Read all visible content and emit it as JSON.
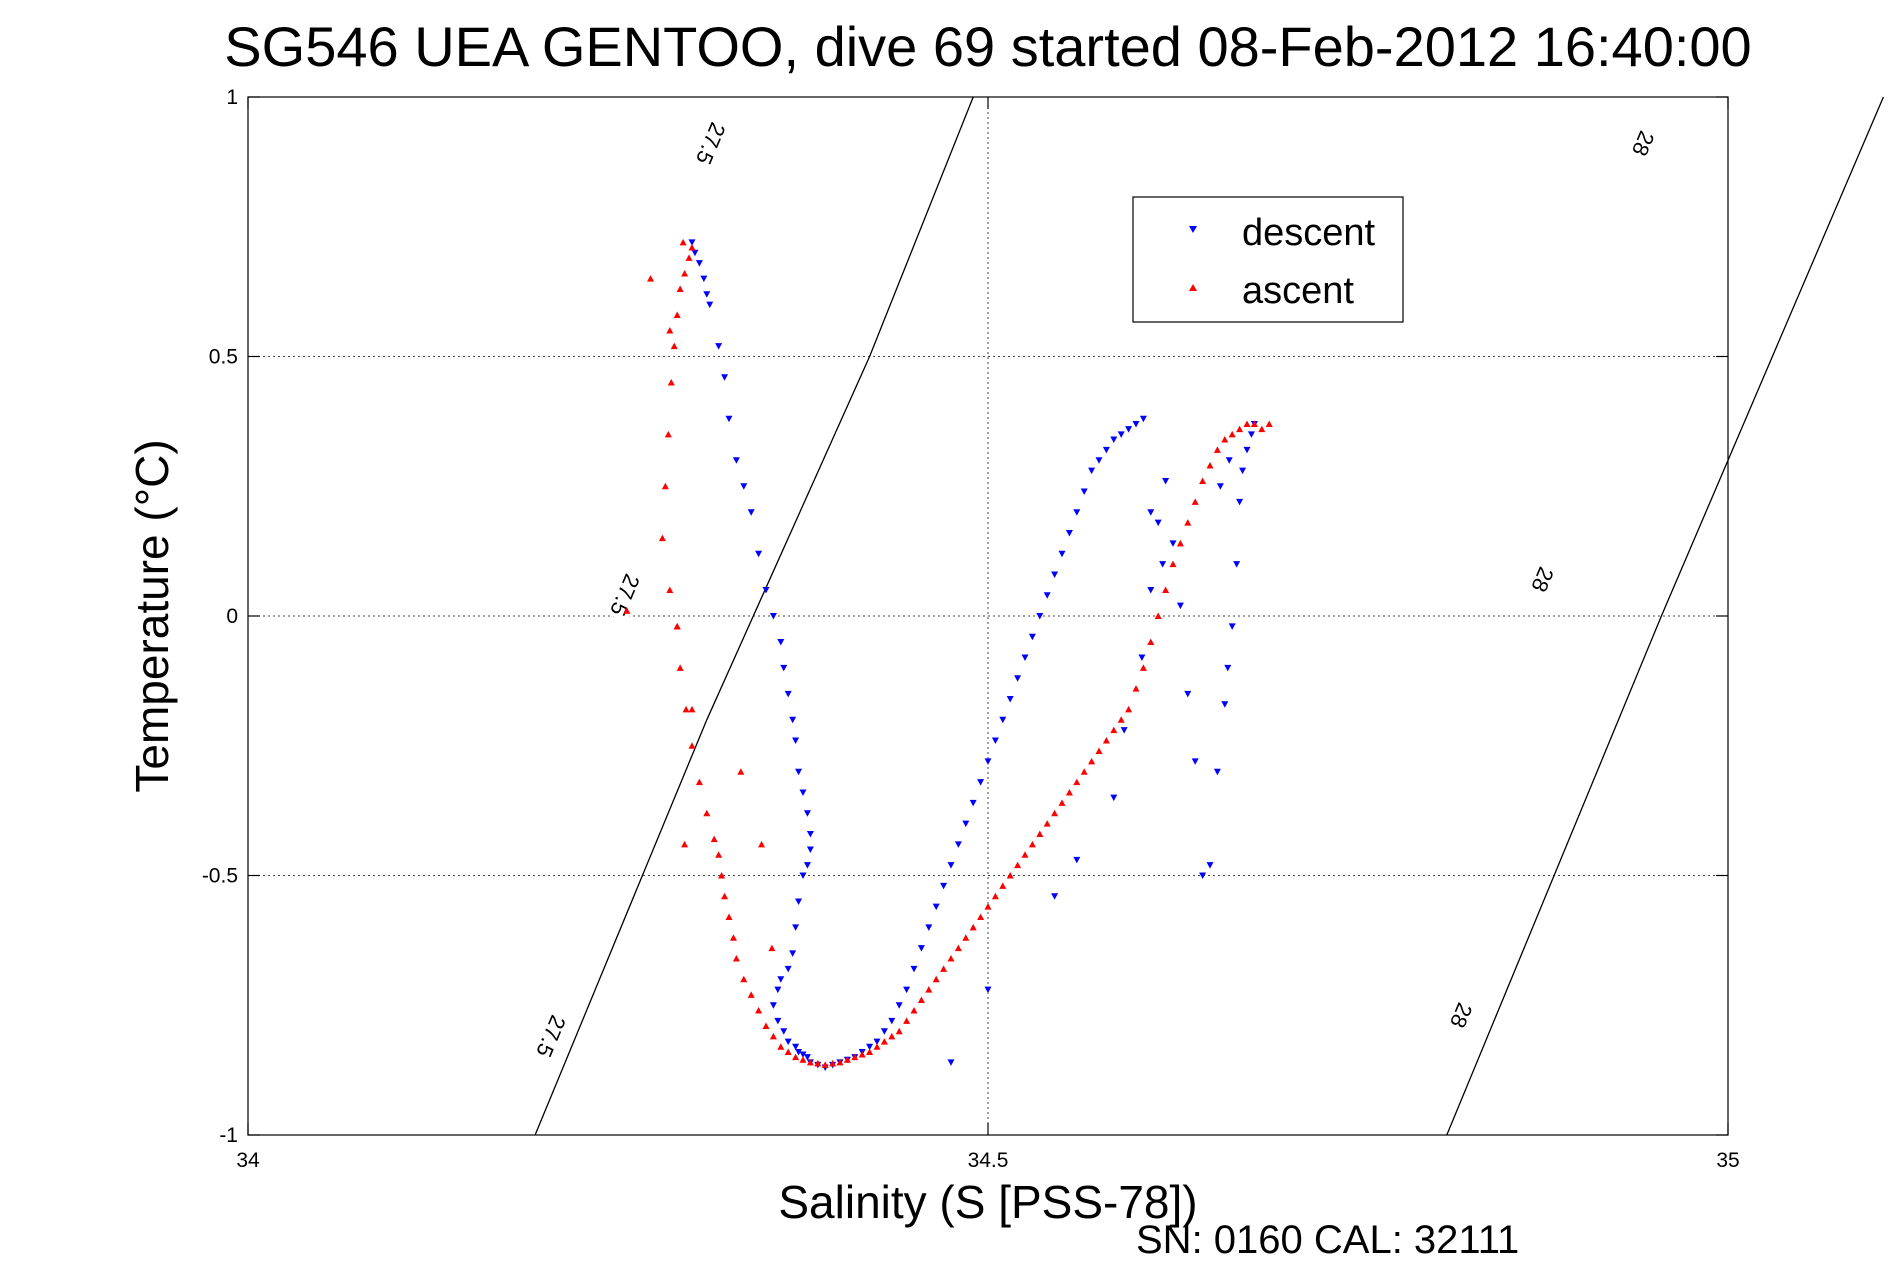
{
  "chart_data": {
    "type": "scatter",
    "title": "SG546 UEA GENTOO, dive 69 started 08-Feb-2012 16:40:00",
    "xlabel": "Salinity (S [PSS-78])",
    "ylabel": "Temperature (°C)",
    "xlim": [
      34,
      35
    ],
    "ylim": [
      -1,
      1
    ],
    "xticks": [
      "34",
      "34.5",
      "35"
    ],
    "yticks": [
      "-1",
      "-0.5",
      "0",
      "0.5",
      "1"
    ],
    "grid": true,
    "legend": "top-right",
    "footnote": "SN: 0160  CAL: 32111",
    "contours": [
      {
        "label": "27.5",
        "points": [
          [
            34.194,
            -1
          ],
          [
            34.31,
            -0.2
          ],
          [
            34.42,
            0.5
          ],
          [
            34.49,
            1
          ]
        ],
        "label_positions": [
          [
            34.205,
            -0.81
          ],
          [
            34.255,
            0.04
          ],
          [
            34.313,
            0.91
          ]
        ]
      },
      {
        "label": "28",
        "points": [
          [
            34.81,
            -1
          ],
          [
            34.955,
            0
          ],
          [
            35.105,
            1
          ]
        ],
        "label_positions": [
          [
            34.82,
            -0.77
          ],
          [
            34.875,
            0.07
          ],
          [
            34.943,
            0.91
          ]
        ]
      }
    ],
    "series": [
      {
        "name": "descent",
        "color": "#0000ff",
        "marker": "triangle-down",
        "x": [
          34.3,
          34.302,
          34.305,
          34.308,
          34.31,
          34.312,
          34.318,
          34.322,
          34.325,
          34.33,
          34.335,
          34.34,
          34.345,
          34.35,
          34.355,
          34.36,
          34.362,
          34.365,
          34.368,
          34.37,
          34.372,
          34.375,
          34.378,
          34.38,
          34.38,
          34.378,
          34.375,
          34.372,
          34.37,
          34.368,
          34.365,
          34.36,
          34.358,
          34.355,
          34.358,
          34.362,
          34.365,
          34.37,
          34.372,
          34.375,
          34.378,
          34.38,
          34.385,
          34.39,
          34.395,
          34.4,
          34.405,
          34.41,
          34.415,
          34.42,
          34.425,
          34.43,
          34.435,
          34.44,
          34.445,
          34.45,
          34.455,
          34.46,
          34.465,
          34.47,
          34.475,
          34.48,
          34.485,
          34.49,
          34.495,
          34.5,
          34.505,
          34.51,
          34.515,
          34.52,
          34.525,
          34.53,
          34.535,
          34.54,
          34.545,
          34.55,
          34.555,
          34.56,
          34.565,
          34.57,
          34.575,
          34.58,
          34.585,
          34.59,
          34.595,
          34.6,
          34.605,
          34.61,
          34.615,
          34.62,
          34.625,
          34.63,
          34.635,
          34.64,
          34.645,
          34.65,
          34.655,
          34.66,
          34.662,
          34.665,
          34.668,
          34.67,
          34.672,
          34.675,
          34.678,
          34.68,
          34.657,
          34.663,
          34.618,
          34.61,
          34.604,
          34.592,
          34.585,
          34.545,
          34.56,
          34.5,
          34.475
        ],
        "y": [
          0.72,
          0.7,
          0.68,
          0.65,
          0.62,
          0.6,
          0.52,
          0.46,
          0.38,
          0.3,
          0.25,
          0.2,
          0.12,
          0.05,
          0.0,
          -0.05,
          -0.1,
          -0.15,
          -0.2,
          -0.24,
          -0.3,
          -0.34,
          -0.38,
          -0.42,
          -0.45,
          -0.48,
          -0.5,
          -0.55,
          -0.6,
          -0.65,
          -0.68,
          -0.7,
          -0.72,
          -0.75,
          -0.78,
          -0.8,
          -0.82,
          -0.83,
          -0.84,
          -0.845,
          -0.85,
          -0.86,
          -0.865,
          -0.87,
          -0.865,
          -0.86,
          -0.855,
          -0.85,
          -0.84,
          -0.83,
          -0.82,
          -0.8,
          -0.78,
          -0.75,
          -0.72,
          -0.68,
          -0.64,
          -0.6,
          -0.56,
          -0.52,
          -0.48,
          -0.44,
          -0.4,
          -0.36,
          -0.32,
          -0.28,
          -0.24,
          -0.2,
          -0.16,
          -0.12,
          -0.08,
          -0.04,
          0.0,
          0.04,
          0.08,
          0.12,
          0.16,
          0.2,
          0.24,
          0.28,
          0.3,
          0.32,
          0.34,
          0.35,
          0.36,
          0.37,
          0.38,
          0.2,
          0.18,
          0.26,
          0.14,
          0.02,
          -0.15,
          -0.28,
          -0.5,
          -0.48,
          -0.3,
          -0.17,
          -0.1,
          -0.02,
          0.1,
          0.22,
          0.28,
          0.32,
          0.35,
          0.37,
          0.25,
          0.3,
          0.1,
          0.05,
          -0.08,
          -0.22,
          -0.35,
          -0.54,
          -0.47,
          -0.72,
          -0.86
        ]
      },
      {
        "name": "ascent",
        "color": "#ff0000",
        "marker": "triangle-up",
        "x": [
          34.3,
          34.298,
          34.295,
          34.292,
          34.29,
          34.288,
          34.286,
          34.284,
          34.282,
          34.28,
          34.285,
          34.29,
          34.292,
          34.296,
          34.3,
          34.305,
          34.31,
          34.315,
          34.318,
          34.32,
          34.322,
          34.325,
          34.328,
          34.33,
          34.335,
          34.34,
          34.345,
          34.35,
          34.355,
          34.36,
          34.365,
          34.37,
          34.375,
          34.38,
          34.385,
          34.39,
          34.395,
          34.4,
          34.405,
          34.41,
          34.415,
          34.42,
          34.425,
          34.43,
          34.435,
          34.44,
          34.445,
          34.45,
          34.455,
          34.46,
          34.465,
          34.47,
          34.475,
          34.48,
          34.485,
          34.49,
          34.495,
          34.5,
          34.505,
          34.51,
          34.515,
          34.52,
          34.525,
          34.53,
          34.535,
          34.54,
          34.545,
          34.55,
          34.555,
          34.56,
          34.565,
          34.57,
          34.575,
          34.58,
          34.585,
          34.59,
          34.595,
          34.6,
          34.605,
          34.61,
          34.615,
          34.62,
          34.625,
          34.63,
          34.635,
          34.64,
          34.645,
          34.65,
          34.655,
          34.66,
          34.665,
          34.67,
          34.675,
          34.68,
          34.685,
          34.69,
          34.272,
          34.285,
          34.294,
          34.256,
          34.29,
          34.295,
          34.3,
          34.333,
          34.347,
          34.354
        ],
        "y": [
          0.71,
          0.69,
          0.66,
          0.63,
          0.58,
          0.52,
          0.45,
          0.35,
          0.25,
          0.15,
          0.05,
          -0.02,
          -0.1,
          -0.18,
          -0.25,
          -0.32,
          -0.38,
          -0.43,
          -0.46,
          -0.5,
          -0.54,
          -0.58,
          -0.62,
          -0.66,
          -0.7,
          -0.73,
          -0.76,
          -0.79,
          -0.81,
          -0.83,
          -0.84,
          -0.85,
          -0.855,
          -0.86,
          -0.862,
          -0.865,
          -0.862,
          -0.86,
          -0.855,
          -0.85,
          -0.845,
          -0.84,
          -0.83,
          -0.82,
          -0.81,
          -0.8,
          -0.78,
          -0.76,
          -0.74,
          -0.72,
          -0.7,
          -0.68,
          -0.66,
          -0.64,
          -0.62,
          -0.6,
          -0.58,
          -0.56,
          -0.54,
          -0.52,
          -0.5,
          -0.48,
          -0.46,
          -0.44,
          -0.42,
          -0.4,
          -0.38,
          -0.36,
          -0.34,
          -0.32,
          -0.3,
          -0.28,
          -0.26,
          -0.24,
          -0.22,
          -0.2,
          -0.18,
          -0.14,
          -0.1,
          -0.05,
          0.0,
          0.05,
          0.1,
          0.14,
          0.18,
          0.22,
          0.26,
          0.29,
          0.32,
          0.34,
          0.35,
          0.36,
          0.37,
          0.37,
          0.36,
          0.37,
          0.65,
          0.55,
          0.72,
          0.01,
          -0.02,
          -0.44,
          -0.18,
          -0.3,
          -0.44,
          -0.64
        ]
      }
    ]
  }
}
